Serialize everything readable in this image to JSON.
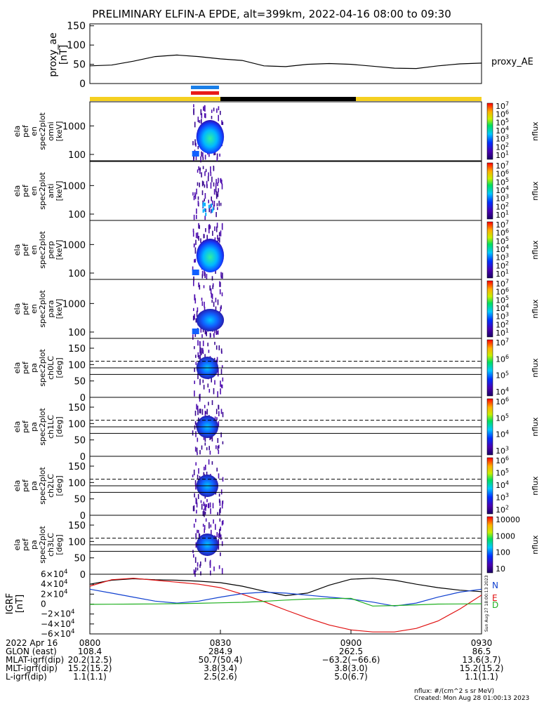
{
  "title": "PRELIMINARY ELFIN-A EPDE, alt=399km, 2022-04-16 08:00 to 09:30",
  "colors": {
    "sci_zone": "#f5d020",
    "eclipse": "#000000",
    "bar_blue": "#1a7fe8",
    "bar_red": "#e81a1a",
    "grf_n": "#000000",
    "grf_e": "#e01010",
    "grf_d": "#1040d0",
    "grf_extra": "#20b020"
  },
  "ae_panel": {
    "ylabel_lines": [
      "proxy_ae",
      "[nT]"
    ],
    "legend": "proxy_AE",
    "yticks": [
      "0",
      "50",
      "100",
      "150"
    ]
  },
  "energy_panels": [
    {
      "label_lines": [
        "ela",
        "pef",
        "en",
        "spec2plot",
        "omni",
        "[keV]"
      ],
      "cb_ticks": [
        "10^7",
        "10^6",
        "10^5",
        "10^4",
        "10^3",
        "10^2",
        "10^1"
      ],
      "cb_label": "nflux"
    },
    {
      "label_lines": [
        "ela",
        "pef",
        "en",
        "spec2plot",
        "anti",
        "[keV]"
      ],
      "cb_ticks": [
        "10^7",
        "10^6",
        "10^5",
        "10^4",
        "10^3",
        "10^2",
        "10^1"
      ],
      "cb_label": "nflux"
    },
    {
      "label_lines": [
        "ela",
        "pef",
        "en",
        "spec2plot",
        "perp",
        "[keV]"
      ],
      "cb_ticks": [
        "10^7",
        "10^6",
        "10^5",
        "10^4",
        "10^3",
        "10^2",
        "10^1"
      ],
      "cb_label": "nflux"
    },
    {
      "label_lines": [
        "ela",
        "pef",
        "en",
        "spec2plot",
        "para",
        "[keV]"
      ],
      "cb_ticks": [
        "10^7",
        "10^6",
        "10^5",
        "10^4",
        "10^3",
        "10^2",
        "10^1"
      ],
      "cb_label": "nflux"
    }
  ],
  "energy_yticks": [
    "1000",
    "100"
  ],
  "pa_panels": [
    {
      "label_lines": [
        "ela",
        "pef",
        "pa",
        "spec2plot",
        "ch0LC",
        "[deg]"
      ],
      "cb_ticks": [
        "10^7",
        "10^6",
        "10^5",
        "10^4"
      ],
      "cb_label": "nflux"
    },
    {
      "label_lines": [
        "ela",
        "pef",
        "pa",
        "spec2plot",
        "ch1LC",
        "[deg]"
      ],
      "cb_ticks": [
        "10^6",
        "10^5",
        "10^4",
        "10^3"
      ],
      "cb_label": "nflux"
    },
    {
      "label_lines": [
        "ela",
        "pef",
        "pa",
        "spec2plot",
        "ch2LC",
        "[deg]"
      ],
      "cb_ticks": [
        "10^6",
        "10^5",
        "10^4",
        "10^3",
        "10^2"
      ],
      "cb_label": "nflux"
    },
    {
      "label_lines": [
        "ela",
        "pef",
        "pa",
        "spec2plot",
        "ch3LC",
        "[deg]"
      ],
      "cb_ticks": [
        "10000",
        "1000",
        "100",
        "10"
      ],
      "cb_label": "nflux"
    }
  ],
  "pa_yticks": [
    "0",
    "50",
    "100",
    "150"
  ],
  "grf_panel": {
    "ylabel_lines": [
      "IGRF",
      "[nT]"
    ],
    "yticks": [
      "6×10^4",
      "4×10^4",
      "2×10^4",
      "0",
      "−2×10^4",
      "−4×10^4",
      "−6×10^4"
    ],
    "legend": [
      "N",
      "E",
      "D"
    ],
    "side_text": "Sun Aug 27 18:00:13 2023"
  },
  "time_axis": {
    "ticks": [
      "0800",
      "0830",
      "0900",
      "0930"
    ]
  },
  "orbit_table": {
    "rows": [
      {
        "label": "2022 Apr 16",
        "values": [
          "0800",
          "0830",
          "0900",
          "0930"
        ]
      },
      {
        "label": "GLON (east)",
        "values": [
          "108.4",
          "284.9",
          "262.5",
          "86.5"
        ]
      },
      {
        "label": "MLAT-igrf(dip)",
        "values": [
          "20.2(12.5)",
          "50.7(50.4)",
          "−63.2(−66.6)",
          "13.6(3.7)"
        ]
      },
      {
        "label": "MLT-igrf(dip)",
        "values": [
          "15.2(15.2)",
          "3.8(3.4)",
          "3.8(3.0)",
          "15.2(15.2)"
        ]
      },
      {
        "label": "L-igrf(dip)",
        "values": [
          "1.1(1.1)",
          "2.5(2.6)",
          "5.0(6.7)",
          "1.1(1.1)"
        ]
      }
    ]
  },
  "footer": {
    "units": "nflux: #/(cm^2 s sr MeV)",
    "created": "Created: Mon Aug 28 01:00:13 2023"
  },
  "chart_data": {
    "type": "line",
    "title": "PRELIMINARY ELFIN-A EPDE, alt=399km, 2022-04-16 08:00 to 09:30",
    "x_minutes": [
      0,
      5,
      10,
      15,
      20,
      25,
      30,
      35,
      40,
      45,
      50,
      55,
      60,
      65,
      70,
      75,
      80,
      85,
      90
    ],
    "xlim_minutes": [
      0,
      90
    ],
    "series": [
      {
        "name": "proxy_AE",
        "values": [
          46,
          48,
          58,
          70,
          74,
          70,
          64,
          60,
          46,
          44,
          50,
          52,
          50,
          45,
          40,
          39,
          46,
          51,
          53
        ],
        "ylim": [
          0,
          155
        ]
      },
      {
        "name": "N",
        "values": [
          40000,
          48000,
          51000,
          49000,
          48000,
          46000,
          43000,
          36000,
          26000,
          17000,
          22000,
          38000,
          50000,
          52000,
          48000,
          40000,
          33000,
          28000,
          25000
        ],
        "ylim": [
          -60000,
          60000
        ]
      },
      {
        "name": "E",
        "values": [
          36000,
          49000,
          52000,
          48000,
          44000,
          40000,
          33000,
          20000,
          5000,
          -12000,
          -28000,
          -42000,
          -52000,
          -56000,
          -56000,
          -49000,
          -34000,
          -10000,
          18000
        ],
        "ylim": [
          -60000,
          60000
        ]
      },
      {
        "name": "D",
        "values": [
          30000,
          22000,
          14000,
          6000,
          2000,
          6000,
          14000,
          21000,
          24000,
          22000,
          18000,
          14000,
          10000,
          4000,
          -4000,
          2000,
          14000,
          24000,
          30000
        ],
        "ylim": [
          -60000,
          60000
        ]
      },
      {
        "name": "",
        "values": [
          -500,
          -300,
          0,
          300,
          800,
          1500,
          2500,
          3500,
          5500,
          8000,
          10000,
          11000,
          11500,
          -4000,
          -3000,
          -1500,
          0,
          300,
          500
        ],
        "ylim": [
          -60000,
          60000
        ]
      }
    ],
    "energy_ylim_keV": [
      60,
      7000
    ],
    "pa_ylim_deg": [
      0,
      180
    ],
    "burst_window_minutes": [
      23.5,
      30.5
    ],
    "dashed_pa_deg": 110,
    "solid_pa_deg": [
      90,
      70
    ],
    "eclipse_window_minutes": [
      30.5,
      58.5
    ]
  }
}
